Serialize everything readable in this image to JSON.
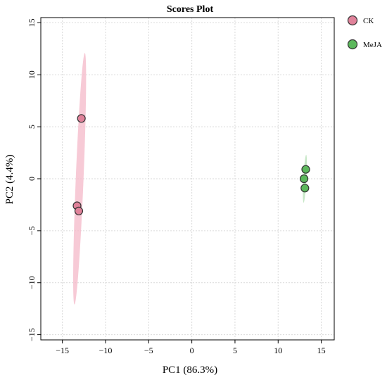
{
  "chart_data": {
    "type": "scatter",
    "title": "Scores Plot",
    "xlabel": "PC1 (86.3%)",
    "ylabel": "PC2 (4.4%)",
    "xlim": [
      -17.5,
      16.5
    ],
    "ylim": [
      -15.5,
      15.5
    ],
    "xticks": [
      -15,
      -10,
      -5,
      0,
      5,
      10,
      15
    ],
    "yticks": [
      -15,
      -10,
      -5,
      0,
      5,
      10,
      15
    ],
    "grid": true,
    "legend_position": "top-right",
    "series": [
      {
        "name": "CK",
        "color": "#e0829a",
        "ellipse_color": "#f4b8c8",
        "points": [
          {
            "x": -12.8,
            "y": 5.8
          },
          {
            "x": -13.3,
            "y": -2.6
          },
          {
            "x": -13.1,
            "y": -3.1
          }
        ],
        "ellipse": {
          "cx": -13.0,
          "cy": 0.0,
          "x_low": -13.6,
          "y_low": -12.1,
          "x_high": -12.4,
          "y_high": 12.1,
          "half_width": 0.45
        }
      },
      {
        "name": "MeJA",
        "color": "#5cb85c",
        "ellipse_color": "#b6e0b6",
        "points": [
          {
            "x": 13.2,
            "y": 0.9
          },
          {
            "x": 13.0,
            "y": 0.0
          },
          {
            "x": 13.1,
            "y": -0.9
          }
        ],
        "ellipse": {
          "cx": 13.1,
          "cy": 0.0,
          "x_low": 12.95,
          "y_low": -2.3,
          "x_high": 13.25,
          "y_high": 2.3,
          "half_width": 0.18
        }
      }
    ]
  }
}
